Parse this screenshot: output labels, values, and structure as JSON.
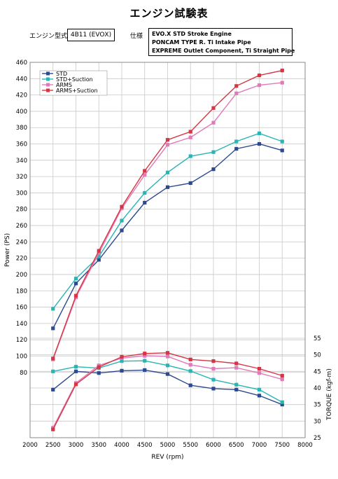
{
  "header": {
    "title": "エンジン試験表",
    "engine_label": "エンジン型式",
    "engine_value": "4B11 (EVOⅩ)",
    "spec_label": "仕様",
    "spec_lines": [
      "EVO.X STD Stroke Engine",
      "PONCAM TYPE R. Ti Intake Pipe",
      "EXPREME Outlet Component, Ti Straight Pipe"
    ]
  },
  "chart_data": {
    "type": "line",
    "xlabel": "REV (rpm)",
    "ylabel_left": "Power (PS)",
    "ylabel_right": "TORQUE (kgf-m)",
    "xlim": [
      2000,
      8000
    ],
    "x_ticks": [
      2000,
      2500,
      3000,
      3500,
      4000,
      4500,
      5000,
      5500,
      6000,
      6500,
      7000,
      7500,
      8000
    ],
    "ylim_left": [
      0,
      460
    ],
    "y_ticks_left": [
      80,
      100,
      120,
      140,
      160,
      180,
      200,
      220,
      240,
      260,
      280,
      300,
      320,
      340,
      360,
      380,
      400,
      420,
      440,
      460
    ],
    "ylim_right": [
      25,
      55
    ],
    "y_ticks_right": [
      25,
      30,
      35,
      40,
      45,
      50,
      55
    ],
    "grid": true,
    "legend_position": "top-left",
    "x": [
      2500,
      3000,
      3500,
      4000,
      4500,
      5000,
      5500,
      6000,
      6500,
      7000,
      7500
    ],
    "power_series": [
      {
        "name": "STD",
        "color": "#2e4a8e",
        "marker": "square",
        "values": [
          134,
          189,
          218,
          254,
          288,
          307,
          312,
          329,
          354,
          360,
          352
        ]
      },
      {
        "name": "STD+Suction",
        "color": "#2ab5b5",
        "marker": "square",
        "values": [
          158,
          195,
          222,
          266,
          300,
          325,
          345,
          350,
          363,
          373,
          363
        ]
      },
      {
        "name": "ARMS",
        "color": "#e07ab8",
        "marker": "square",
        "values": [
          96,
          172,
          226,
          281,
          322,
          359,
          368,
          386,
          422,
          432,
          435
        ]
      },
      {
        "name": "ARMS+Suction",
        "color": "#d63545",
        "marker": "square",
        "values": [
          97,
          174,
          229,
          283,
          327,
          365,
          375,
          404,
          431,
          444,
          450
        ]
      }
    ],
    "torque_series": [
      {
        "name": "STD",
        "color": "#2e4a8e",
        "values": [
          39.5,
          45.0,
          44.5,
          45.2,
          45.4,
          44.2,
          40.8,
          39.8,
          39.5,
          37.7,
          35.0
        ]
      },
      {
        "name": "STD+Suction",
        "color": "#2ab5b5",
        "values": [
          45.0,
          46.4,
          46.0,
          48.1,
          48.2,
          46.8,
          45.1,
          42.5,
          41.0,
          39.5,
          35.7
        ]
      },
      {
        "name": "ARMS",
        "color": "#e07ab8",
        "values": [
          28.0,
          41.5,
          46.8,
          49.0,
          49.7,
          49.5,
          47.0,
          45.8,
          46.1,
          44.5,
          42.6
        ]
      },
      {
        "name": "ARMS+Suction",
        "color": "#d63545",
        "values": [
          27.5,
          41.1,
          46.3,
          49.4,
          50.4,
          50.6,
          48.6,
          48.1,
          47.4,
          45.8,
          43.7
        ]
      }
    ]
  }
}
